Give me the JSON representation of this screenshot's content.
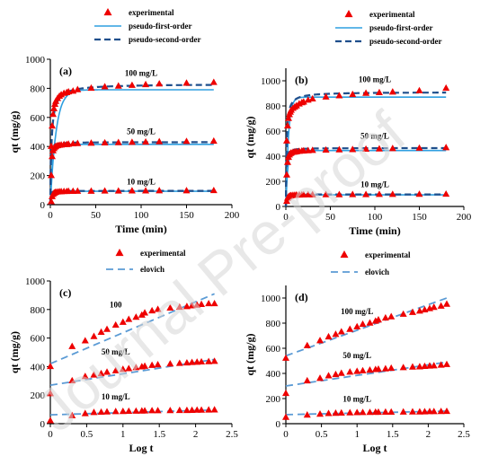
{
  "watermark": "Journal Pre-proof",
  "chart_data": [
    {
      "panel": "(a)",
      "type": "scatter+line",
      "xlabel": "Time (min)",
      "ylabel": "qt (mg/g)",
      "xlim": [
        0,
        200
      ],
      "ylim": [
        0,
        1000
      ],
      "xticks": [
        0,
        50,
        100,
        150,
        200
      ],
      "yticks": [
        0,
        200,
        400,
        600,
        800,
        1000
      ],
      "legend": {
        "position": "top",
        "entries": [
          "experimental",
          "pseudo-first-order",
          "pseudo-second-order"
        ]
      },
      "curve_labels": [
        {
          "text": "100 mg/L",
          "x": 100,
          "y": 885
        },
        {
          "text": "50 mg/L",
          "x": 100,
          "y": 485
        },
        {
          "text": "10 mg/L",
          "x": 100,
          "y": 140
        }
      ],
      "series": [
        {
          "role": "experimental",
          "group": "100 mg/L",
          "x": [
            1,
            2,
            3,
            4,
            5,
            6,
            8,
            10,
            12,
            15,
            18,
            20,
            25,
            30,
            45,
            60,
            75,
            90,
            105,
            120,
            150,
            180
          ],
          "y": [
            400,
            540,
            620,
            660,
            690,
            710,
            730,
            745,
            755,
            765,
            770,
            775,
            780,
            790,
            800,
            810,
            815,
            820,
            825,
            830,
            835,
            840
          ]
        },
        {
          "role": "pseudo-first-order",
          "group": "100 mg/L",
          "qe": 790,
          "k": 0.16
        },
        {
          "role": "pseudo-second-order",
          "group": "100 mg/L",
          "qe": 830,
          "k": 0.0009
        },
        {
          "role": "experimental",
          "group": "50 mg/L",
          "x": [
            1,
            2,
            3,
            4,
            5,
            6,
            8,
            10,
            12,
            15,
            18,
            20,
            25,
            30,
            45,
            60,
            75,
            90,
            105,
            120,
            150,
            180
          ],
          "y": [
            200,
            330,
            370,
            385,
            395,
            400,
            405,
            408,
            410,
            412,
            413,
            415,
            418,
            420,
            422,
            424,
            426,
            428,
            430,
            432,
            434,
            436
          ]
        },
        {
          "role": "pseudo-first-order",
          "group": "50 mg/L",
          "qe": 415,
          "k": 0.5
        },
        {
          "role": "pseudo-second-order",
          "group": "50 mg/L",
          "qe": 430,
          "k": 0.01
        },
        {
          "role": "experimental",
          "group": "10 mg/L",
          "x": [
            1,
            2,
            3,
            4,
            5,
            6,
            8,
            10,
            12,
            15,
            18,
            20,
            25,
            30,
            45,
            60,
            75,
            90,
            105,
            120,
            150,
            180
          ],
          "y": [
            20,
            55,
            70,
            78,
            82,
            85,
            87,
            88,
            89,
            90,
            90,
            91,
            91,
            92,
            92,
            93,
            93,
            94,
            94,
            95,
            95,
            96
          ]
        },
        {
          "role": "pseudo-first-order",
          "group": "10 mg/L",
          "qe": 92,
          "k": 0.6
        },
        {
          "role": "pseudo-second-order",
          "group": "10 mg/L",
          "qe": 95,
          "k": 0.05
        }
      ]
    },
    {
      "panel": "(b)",
      "type": "scatter+line",
      "xlabel": "Time (min)",
      "ylabel": "qt (mg/g)",
      "xlim": [
        0,
        200
      ],
      "ylim": [
        0,
        1100
      ],
      "xticks": [
        0,
        50,
        100,
        150,
        200
      ],
      "yticks": [
        0,
        200,
        400,
        600,
        800,
        1000
      ],
      "legend": {
        "position": "top",
        "entries": [
          "experimental",
          "pseudo-first-order",
          "pseudo-second-order"
        ]
      },
      "curve_labels": [
        {
          "text": "100 mg/L",
          "x": 100,
          "y": 990
        },
        {
          "text": "50 mg/L",
          "x": 100,
          "y": 540
        },
        {
          "text": "10 mg/L",
          "x": 100,
          "y": 155
        }
      ],
      "series": [
        {
          "role": "experimental",
          "group": "100 mg/L",
          "x": [
            1,
            2,
            3,
            4,
            5,
            6,
            8,
            10,
            12,
            15,
            18,
            20,
            25,
            30,
            45,
            60,
            75,
            90,
            105,
            120,
            150,
            180
          ],
          "y": [
            520,
            640,
            700,
            730,
            750,
            765,
            780,
            790,
            800,
            815,
            825,
            830,
            845,
            855,
            870,
            880,
            890,
            900,
            905,
            910,
            920,
            940
          ]
        },
        {
          "role": "pseudo-first-order",
          "group": "100 mg/L",
          "qe": 870,
          "k": 0.35
        },
        {
          "role": "pseudo-second-order",
          "group": "100 mg/L",
          "qe": 910,
          "k": 0.0015
        },
        {
          "role": "experimental",
          "group": "50 mg/L",
          "x": [
            1,
            2,
            3,
            4,
            5,
            6,
            8,
            10,
            12,
            15,
            18,
            20,
            25,
            30,
            45,
            60,
            75,
            90,
            105,
            120,
            150,
            180
          ],
          "y": [
            250,
            350,
            390,
            410,
            420,
            425,
            430,
            432,
            435,
            438,
            440,
            441,
            443,
            445,
            448,
            450,
            452,
            455,
            457,
            460,
            463,
            467
          ]
        },
        {
          "role": "pseudo-first-order",
          "group": "50 mg/L",
          "qe": 445,
          "k": 0.5
        },
        {
          "role": "pseudo-second-order",
          "group": "50 mg/L",
          "qe": 465,
          "k": 0.008
        },
        {
          "role": "experimental",
          "group": "10 mg/L",
          "x": [
            1,
            2,
            3,
            4,
            5,
            6,
            8,
            10,
            12,
            15,
            18,
            20,
            25,
            30,
            45,
            60,
            75,
            90,
            105,
            120,
            150,
            180
          ],
          "y": [
            40,
            65,
            75,
            80,
            84,
            86,
            88,
            89,
            90,
            90,
            91,
            91,
            92,
            92,
            93,
            93,
            94,
            94,
            95,
            95,
            96,
            97
          ]
        },
        {
          "role": "pseudo-first-order",
          "group": "10 mg/L",
          "qe": 92,
          "k": 0.6
        },
        {
          "role": "pseudo-second-order",
          "group": "10 mg/L",
          "qe": 96,
          "k": 0.05
        }
      ]
    },
    {
      "panel": "(c)",
      "type": "scatter+line",
      "xlabel": "Log t",
      "ylabel": "qt (mg/g)",
      "xlim": [
        0,
        2.5
      ],
      "ylim": [
        0,
        1000
      ],
      "xticks": [
        0,
        0.5,
        1,
        1.5,
        2,
        2.5
      ],
      "yticks": [
        0,
        200,
        400,
        600,
        800,
        1000
      ],
      "legend": {
        "position": "top",
        "entries": [
          "experimental",
          "elovich"
        ]
      },
      "curve_labels": [
        {
          "text": "100",
          "x": 0.9,
          "y": 815
        },
        {
          "text": "50 mg/L",
          "x": 0.9,
          "y": 485
        },
        {
          "text": "10 mg/L",
          "x": 0.9,
          "y": 170
        }
      ],
      "series": [
        {
          "role": "experimental",
          "group": "100",
          "x": [
            0,
            0.3,
            0.48,
            0.6,
            0.7,
            0.78,
            0.9,
            1.0,
            1.08,
            1.18,
            1.26,
            1.3,
            1.4,
            1.48,
            1.65,
            1.78,
            1.88,
            1.95,
            2.02,
            2.08,
            2.18,
            2.26
          ],
          "y": [
            400,
            540,
            580,
            610,
            640,
            660,
            690,
            710,
            730,
            745,
            760,
            775,
            790,
            800,
            810,
            815,
            820,
            825,
            830,
            835,
            840,
            840
          ]
        },
        {
          "role": "elovich",
          "group": "100",
          "x": [
            0,
            2.26
          ],
          "y": [
            420,
            910
          ]
        },
        {
          "role": "experimental",
          "group": "50 mg/L",
          "x": [
            0,
            0.3,
            0.48,
            0.6,
            0.7,
            0.78,
            0.9,
            1.0,
            1.08,
            1.18,
            1.26,
            1.3,
            1.4,
            1.48,
            1.65,
            1.78,
            1.88,
            1.95,
            2.02,
            2.08,
            2.18,
            2.26
          ],
          "y": [
            210,
            300,
            330,
            340,
            350,
            360,
            370,
            380,
            385,
            392,
            398,
            402,
            408,
            412,
            418,
            422,
            425,
            428,
            430,
            432,
            434,
            436
          ]
        },
        {
          "role": "elovich",
          "group": "50 mg/L",
          "x": [
            0,
            2.26
          ],
          "y": [
            270,
            450
          ]
        },
        {
          "role": "experimental",
          "group": "10 mg/L",
          "x": [
            0,
            0.3,
            0.48,
            0.6,
            0.7,
            0.78,
            0.9,
            1.0,
            1.08,
            1.18,
            1.26,
            1.3,
            1.4,
            1.48,
            1.65,
            1.78,
            1.88,
            1.95,
            2.02,
            2.08,
            2.18,
            2.26
          ],
          "y": [
            20,
            55,
            70,
            78,
            80,
            82,
            84,
            85,
            86,
            87,
            88,
            89,
            90,
            90,
            91,
            92,
            92,
            93,
            94,
            94,
            95,
            96
          ]
        },
        {
          "role": "elovich",
          "group": "10 mg/L",
          "x": [
            0,
            2.26
          ],
          "y": [
            62,
            96
          ]
        }
      ]
    },
    {
      "panel": "(d)",
      "type": "scatter+line",
      "xlabel": "Log t",
      "ylabel": "qt (mg/g)",
      "xlim": [
        0,
        2.5
      ],
      "ylim": [
        0,
        1100
      ],
      "xticks": [
        0,
        0.5,
        1,
        1.5,
        2,
        2.5
      ],
      "yticks": [
        0,
        200,
        400,
        600,
        800,
        1000
      ],
      "legend": {
        "position": "top",
        "entries": [
          "experimental",
          "elovich"
        ]
      },
      "curve_labels": [
        {
          "text": "100 mg/L",
          "x": 1.0,
          "y": 870
        },
        {
          "text": "50 mg/L",
          "x": 1.0,
          "y": 520
        },
        {
          "text": "10 mg/L",
          "x": 1.0,
          "y": 175
        }
      ],
      "series": [
        {
          "role": "experimental",
          "group": "100 mg/L",
          "x": [
            0,
            0.3,
            0.48,
            0.6,
            0.7,
            0.78,
            0.9,
            1.0,
            1.08,
            1.18,
            1.26,
            1.3,
            1.4,
            1.48,
            1.65,
            1.78,
            1.88,
            1.95,
            2.02,
            2.08,
            2.18,
            2.26
          ],
          "y": [
            520,
            620,
            660,
            690,
            710,
            730,
            750,
            770,
            790,
            800,
            815,
            825,
            840,
            850,
            870,
            885,
            895,
            905,
            915,
            925,
            935,
            950
          ]
        },
        {
          "role": "elovich",
          "group": "100 mg/L",
          "x": [
            0,
            2.26
          ],
          "y": [
            540,
            1000
          ]
        },
        {
          "role": "experimental",
          "group": "50 mg/L",
          "x": [
            0,
            0.3,
            0.48,
            0.6,
            0.7,
            0.78,
            0.9,
            1.0,
            1.08,
            1.18,
            1.26,
            1.3,
            1.4,
            1.48,
            1.65,
            1.78,
            1.88,
            1.95,
            2.02,
            2.08,
            2.18,
            2.26
          ],
          "y": [
            240,
            340,
            360,
            380,
            390,
            400,
            410,
            415,
            420,
            425,
            430,
            432,
            436,
            440,
            445,
            450,
            452,
            455,
            458,
            460,
            465,
            470
          ]
        },
        {
          "role": "elovich",
          "group": "50 mg/L",
          "x": [
            0,
            2.26
          ],
          "y": [
            300,
            490
          ]
        },
        {
          "role": "experimental",
          "group": "10 mg/L",
          "x": [
            0,
            0.3,
            0.48,
            0.6,
            0.7,
            0.78,
            0.9,
            1.0,
            1.08,
            1.18,
            1.26,
            1.3,
            1.4,
            1.48,
            1.65,
            1.78,
            1.88,
            1.95,
            2.02,
            2.08,
            2.18,
            2.26
          ],
          "y": [
            50,
            68,
            75,
            80,
            82,
            84,
            86,
            87,
            88,
            89,
            90,
            90,
            91,
            91,
            92,
            93,
            93,
            94,
            95,
            95,
            96,
            97
          ]
        },
        {
          "role": "elovich",
          "group": "10 mg/L",
          "x": [
            0,
            2.26
          ],
          "y": [
            72,
            100
          ]
        }
      ]
    }
  ],
  "colors": {
    "experimental": "#ee0000",
    "pseudo-first-order": "#2f9fe0",
    "pseudo-second-order": "#1f4f8c",
    "elovich": "#5b9bd5"
  }
}
